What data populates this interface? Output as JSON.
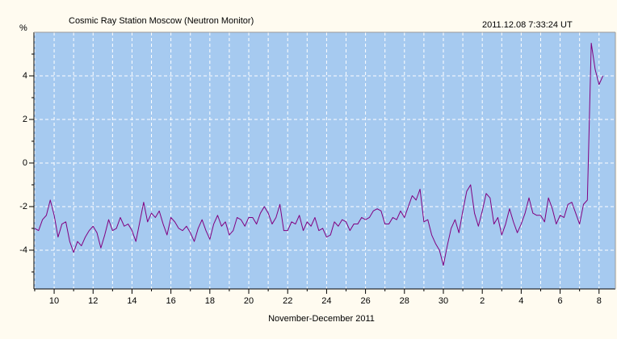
{
  "chart_data": {
    "type": "line",
    "title": "Cosmic Ray Station Moscow (Neutron Monitor)",
    "timestamp": "2011.12.08 7:33:24 UT",
    "y_label": "%",
    "x_label": "November-December 2011",
    "background": "#fffbf0",
    "plot_background": "#a6caf0",
    "grid": true,
    "xlim": [
      8.96,
      38.84
    ],
    "ylim": [
      -5.78,
      6
    ],
    "xticks": [
      10,
      12,
      14,
      16,
      18,
      20,
      22,
      24,
      26,
      28,
      30,
      {
        "value": 32,
        "label": "2"
      },
      {
        "value": 34,
        "label": "4"
      },
      {
        "value": 36,
        "label": "6"
      },
      {
        "value": 38,
        "label": "8"
      }
    ],
    "xminorticks": [
      9,
      11,
      13,
      15,
      17,
      19,
      21,
      23,
      25,
      27,
      29,
      31,
      33,
      35,
      37
    ],
    "yticks": [
      -4,
      -2,
      0,
      2,
      4
    ],
    "yminorticks": [
      -5,
      -3,
      -1,
      1,
      3,
      5
    ],
    "x": [
      9,
      9.2,
      9.4,
      9.6,
      9.8,
      10,
      10.2,
      10.4,
      10.6,
      10.8,
      11,
      11.2,
      11.4,
      11.6,
      11.8,
      12,
      12.2,
      12.4,
      12.6,
      12.8,
      13,
      13.2,
      13.4,
      13.6,
      13.8,
      14,
      14.2,
      14.4,
      14.6,
      14.8,
      15,
      15.2,
      15.4,
      15.6,
      15.8,
      16,
      16.2,
      16.4,
      16.6,
      16.8,
      17,
      17.2,
      17.4,
      17.6,
      17.8,
      18,
      18.2,
      18.4,
      18.6,
      18.8,
      19,
      19.2,
      19.4,
      19.6,
      19.8,
      20,
      20.2,
      20.4,
      20.6,
      20.8,
      21,
      21.2,
      21.4,
      21.6,
      21.8,
      22,
      22.2,
      22.4,
      22.6,
      22.8,
      23,
      23.2,
      23.4,
      23.6,
      23.8,
      24,
      24.2,
      24.4,
      24.6,
      24.8,
      25,
      25.2,
      25.4,
      25.6,
      25.8,
      26,
      26.2,
      26.4,
      26.6,
      26.8,
      27,
      27.2,
      27.4,
      27.6,
      27.8,
      28,
      28.2,
      28.4,
      28.6,
      28.8,
      29,
      29.2,
      29.4,
      29.6,
      29.8,
      30,
      30.2,
      30.4,
      30.6,
      30.8,
      31,
      31.2,
      31.4,
      31.6,
      31.8,
      32,
      32.2,
      32.4,
      32.6,
      32.8,
      33,
      33.2,
      33.4,
      33.6,
      33.8,
      34,
      34.2,
      34.4,
      34.6,
      34.8,
      35,
      35.2,
      35.4,
      35.6,
      35.8,
      36,
      36.2,
      36.4,
      36.6,
      36.8,
      37,
      37.2,
      37.4,
      37.6,
      37.8,
      38,
      38.2
    ],
    "series": [
      {
        "name": "Neutron Monitor",
        "color": "#800080",
        "values": [
          -3.0,
          -3.1,
          -2.6,
          -2.4,
          -1.7,
          -2.4,
          -3.4,
          -2.8,
          -2.7,
          -3.6,
          -4.1,
          -3.6,
          -3.8,
          -3.4,
          -3.1,
          -2.9,
          -3.2,
          -3.9,
          -3.3,
          -2.6,
          -3.1,
          -3.0,
          -2.5,
          -2.9,
          -2.8,
          -3.1,
          -3.6,
          -2.7,
          -1.8,
          -2.7,
          -2.3,
          -2.5,
          -2.2,
          -2.8,
          -3.3,
          -2.5,
          -2.7,
          -3.0,
          -3.1,
          -2.9,
          -3.2,
          -3.6,
          -3.0,
          -2.6,
          -3.1,
          -3.5,
          -2.8,
          -2.4,
          -2.9,
          -2.7,
          -3.3,
          -3.1,
          -2.5,
          -2.6,
          -2.9,
          -2.5,
          -2.5,
          -2.8,
          -2.3,
          -2.0,
          -2.3,
          -2.8,
          -2.5,
          -1.9,
          -3.1,
          -3.1,
          -2.7,
          -2.8,
          -2.4,
          -3.1,
          -2.7,
          -2.9,
          -2.5,
          -3.1,
          -3.0,
          -3.4,
          -3.3,
          -2.7,
          -2.9,
          -2.6,
          -2.7,
          -3.1,
          -2.8,
          -2.8,
          -2.5,
          -2.6,
          -2.5,
          -2.2,
          -2.1,
          -2.2,
          -2.8,
          -2.8,
          -2.5,
          -2.6,
          -2.2,
          -2.5,
          -2.0,
          -1.5,
          -1.7,
          -1.2,
          -2.7,
          -2.6,
          -3.3,
          -3.7,
          -4.0,
          -4.7,
          -3.8,
          -3.0,
          -2.6,
          -3.2,
          -2.2,
          -1.3,
          -1.0,
          -2.3,
          -2.9,
          -2.2,
          -1.4,
          -1.6,
          -2.8,
          -2.5,
          -3.3,
          -2.8,
          -2.1,
          -2.7,
          -3.2,
          -2.8,
          -2.3,
          -1.6,
          -2.3,
          -2.4,
          -2.4,
          -2.7,
          -1.6,
          -2.1,
          -2.8,
          -2.4,
          -2.5,
          -1.9,
          -1.8,
          -2.3,
          -2.8,
          -1.9,
          -1.7,
          5.5,
          4.3,
          3.6,
          4.0
        ]
      }
    ]
  }
}
